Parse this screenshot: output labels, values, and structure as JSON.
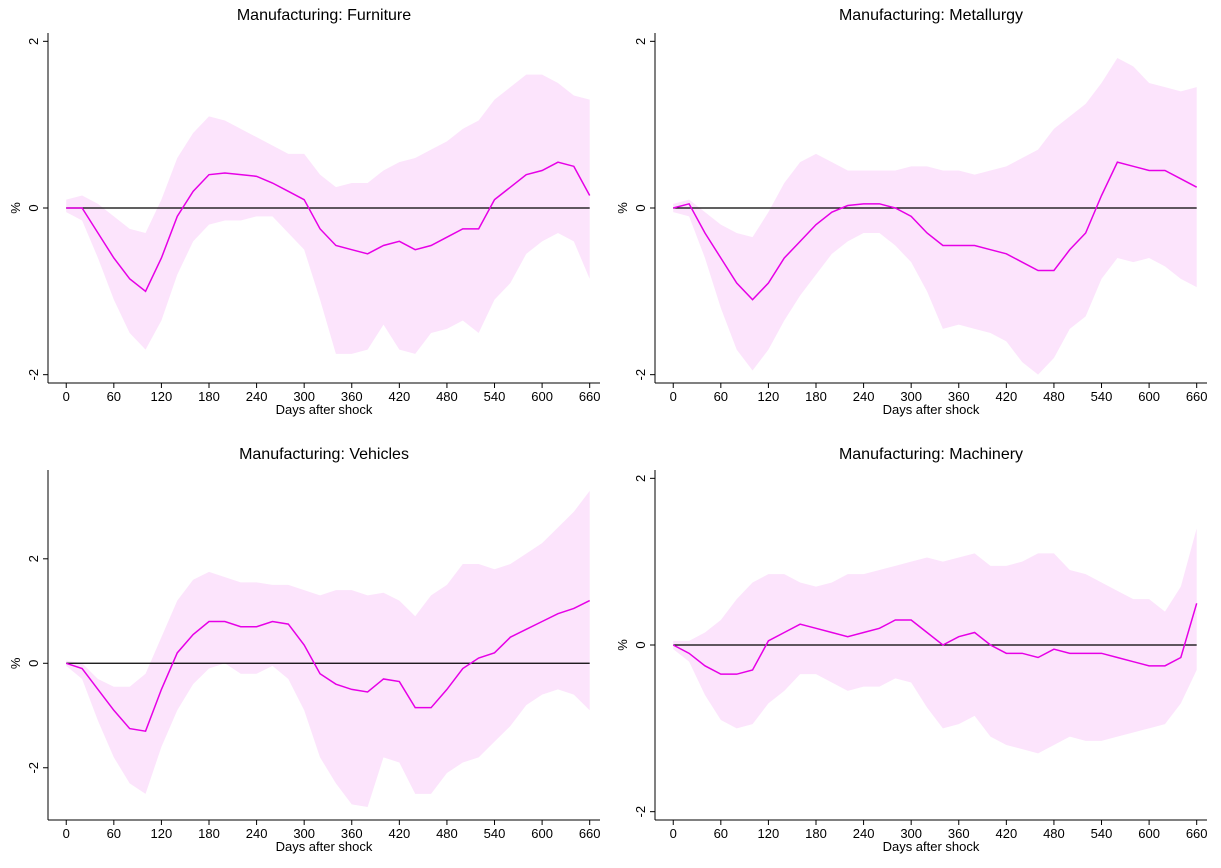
{
  "chart_data": [
    {
      "type": "line",
      "title": "Manufacturing: Furniture",
      "x_label": "Days after shock",
      "y_label": "%",
      "x": [
        0,
        20,
        40,
        60,
        80,
        100,
        120,
        140,
        160,
        180,
        200,
        220,
        240,
        260,
        280,
        300,
        320,
        340,
        360,
        380,
        400,
        420,
        440,
        460,
        480,
        500,
        520,
        540,
        560,
        580,
        600,
        620,
        640,
        660
      ],
      "values": [
        0,
        0,
        -0.3,
        -0.6,
        -0.85,
        -1.0,
        -0.6,
        -0.1,
        0.2,
        0.4,
        0.42,
        0.4,
        0.38,
        0.3,
        0.2,
        0.1,
        -0.25,
        -0.45,
        -0.5,
        -0.55,
        -0.45,
        -0.4,
        -0.5,
        -0.45,
        -0.35,
        -0.25,
        -0.25,
        0.1,
        0.25,
        0.4,
        0.45,
        0.55,
        0.5,
        0.15
      ],
      "upper": [
        0.1,
        0.15,
        0.05,
        -0.1,
        -0.25,
        -0.3,
        0.1,
        0.6,
        0.9,
        1.1,
        1.05,
        0.95,
        0.85,
        0.75,
        0.65,
        0.65,
        0.4,
        0.25,
        0.3,
        0.3,
        0.45,
        0.55,
        0.6,
        0.7,
        0.8,
        0.95,
        1.05,
        1.3,
        1.45,
        1.6,
        1.6,
        1.5,
        1.35,
        1.3
      ],
      "lower": [
        -0.05,
        -0.15,
        -0.6,
        -1.1,
        -1.5,
        -1.7,
        -1.35,
        -0.8,
        -0.4,
        -0.2,
        -0.15,
        -0.15,
        -0.1,
        -0.1,
        -0.3,
        -0.5,
        -1.1,
        -1.75,
        -1.75,
        -1.7,
        -1.4,
        -1.7,
        -1.75,
        -1.5,
        -1.45,
        -1.35,
        -1.5,
        -1.1,
        -0.9,
        -0.55,
        -0.4,
        -0.3,
        -0.4,
        -0.85
      ],
      "color": "#e600e6",
      "band_color": "#fce4fc",
      "hline": 0,
      "xlim": [
        -23,
        673
      ],
      "xticks": [
        0,
        60,
        120,
        180,
        240,
        300,
        360,
        420,
        480,
        540,
        600,
        660
      ],
      "ylim": [
        -2.1,
        2.1
      ],
      "yticks": [
        -2,
        0,
        2
      ]
    },
    {
      "type": "line",
      "title": "Manufacturing: Metallurgy",
      "x_label": "Days after shock",
      "y_label": "%",
      "x": [
        0,
        20,
        40,
        60,
        80,
        100,
        120,
        140,
        160,
        180,
        200,
        220,
        240,
        260,
        280,
        300,
        320,
        340,
        360,
        380,
        400,
        420,
        440,
        460,
        480,
        500,
        520,
        540,
        560,
        580,
        600,
        620,
        640,
        660
      ],
      "values": [
        0,
        0.05,
        -0.3,
        -0.6,
        -0.9,
        -1.1,
        -0.9,
        -0.6,
        -0.4,
        -0.2,
        -0.05,
        0.03,
        0.05,
        0.05,
        0,
        -0.1,
        -0.3,
        -0.45,
        -0.45,
        -0.45,
        -0.5,
        -0.55,
        -0.65,
        -0.75,
        -0.75,
        -0.5,
        -0.3,
        0.15,
        0.55,
        0.5,
        0.45,
        0.45,
        0.35,
        0.25
      ],
      "upper": [
        0.05,
        0.1,
        -0.05,
        -0.2,
        -0.3,
        -0.35,
        -0.05,
        0.3,
        0.55,
        0.65,
        0.55,
        0.45,
        0.45,
        0.45,
        0.45,
        0.5,
        0.5,
        0.45,
        0.45,
        0.4,
        0.45,
        0.5,
        0.6,
        0.7,
        0.95,
        1.1,
        1.25,
        1.5,
        1.8,
        1.7,
        1.5,
        1.45,
        1.4,
        1.45
      ],
      "lower": [
        -0.05,
        -0.1,
        -0.6,
        -1.2,
        -1.7,
        -1.95,
        -1.7,
        -1.35,
        -1.05,
        -0.8,
        -0.55,
        -0.4,
        -0.3,
        -0.3,
        -0.45,
        -0.65,
        -1.0,
        -1.45,
        -1.4,
        -1.45,
        -1.5,
        -1.6,
        -1.85,
        -2.0,
        -1.8,
        -1.45,
        -1.3,
        -0.85,
        -0.6,
        -0.65,
        -0.6,
        -0.7,
        -0.85,
        -0.95
      ],
      "color": "#e600e6",
      "band_color": "#fce4fc",
      "hline": 0,
      "xlim": [
        -23,
        673
      ],
      "xticks": [
        0,
        60,
        120,
        180,
        240,
        300,
        360,
        420,
        480,
        540,
        600,
        660
      ],
      "ylim": [
        -2.1,
        2.1
      ],
      "yticks": [
        -2,
        0,
        2
      ]
    },
    {
      "type": "line",
      "title": "Manufacturing: Vehicles",
      "x_label": "Days after shock",
      "y_label": "%",
      "x": [
        0,
        20,
        40,
        60,
        80,
        100,
        120,
        140,
        160,
        180,
        200,
        220,
        240,
        260,
        280,
        300,
        320,
        340,
        360,
        380,
        400,
        420,
        440,
        460,
        480,
        500,
        520,
        540,
        560,
        580,
        600,
        620,
        640,
        660
      ],
      "values": [
        0,
        -0.1,
        -0.5,
        -0.9,
        -1.25,
        -1.3,
        -0.5,
        0.2,
        0.55,
        0.8,
        0.8,
        0.7,
        0.7,
        0.8,
        0.75,
        0.35,
        -0.2,
        -0.4,
        -0.5,
        -0.55,
        -0.3,
        -0.35,
        -0.85,
        -0.85,
        -0.5,
        -0.1,
        0.1,
        0.2,
        0.5,
        0.65,
        0.8,
        0.95,
        1.05,
        1.2
      ],
      "upper": [
        0.05,
        0,
        -0.3,
        -0.45,
        -0.45,
        -0.2,
        0.5,
        1.2,
        1.6,
        1.75,
        1.65,
        1.55,
        1.55,
        1.5,
        1.5,
        1.4,
        1.3,
        1.4,
        1.4,
        1.3,
        1.35,
        1.2,
        0.9,
        1.3,
        1.5,
        1.9,
        1.9,
        1.8,
        1.9,
        2.1,
        2.3,
        2.6,
        2.9,
        3.3
      ],
      "lower": [
        -0.05,
        -0.3,
        -1.1,
        -1.8,
        -2.3,
        -2.5,
        -1.6,
        -0.9,
        -0.4,
        -0.1,
        0,
        -0.2,
        -0.2,
        -0.05,
        -0.3,
        -0.9,
        -1.8,
        -2.3,
        -2.7,
        -2.75,
        -1.8,
        -1.9,
        -2.5,
        -2.5,
        -2.1,
        -1.9,
        -1.8,
        -1.5,
        -1.2,
        -0.8,
        -0.6,
        -0.5,
        -0.6,
        -0.9
      ],
      "color": "#e600e6",
      "band_color": "#fce4fc",
      "hline": 0,
      "xlim": [
        -23,
        673
      ],
      "xticks": [
        0,
        60,
        120,
        180,
        240,
        300,
        360,
        420,
        480,
        540,
        600,
        660
      ],
      "ylim": [
        -3,
        3.7
      ],
      "yticks": [
        -2,
        0,
        2
      ]
    },
    {
      "type": "line",
      "title": "Manufacturing: Machinery",
      "x_label": "Days after shock",
      "y_label": "%",
      "x": [
        0,
        20,
        40,
        60,
        80,
        100,
        120,
        140,
        160,
        180,
        200,
        220,
        240,
        260,
        280,
        300,
        320,
        340,
        360,
        380,
        400,
        420,
        440,
        460,
        480,
        500,
        520,
        540,
        560,
        580,
        600,
        620,
        640,
        660
      ],
      "values": [
        0,
        -0.1,
        -0.25,
        -0.35,
        -0.35,
        -0.3,
        0.05,
        0.15,
        0.25,
        0.2,
        0.15,
        0.1,
        0.15,
        0.2,
        0.3,
        0.3,
        0.15,
        0,
        0.1,
        0.15,
        0,
        -0.1,
        -0.1,
        -0.15,
        -0.05,
        -0.1,
        -0.1,
        -0.1,
        -0.15,
        -0.2,
        -0.25,
        -0.25,
        -0.15,
        0.5
      ],
      "upper": [
        0.05,
        0.05,
        0.15,
        0.3,
        0.55,
        0.75,
        0.85,
        0.85,
        0.75,
        0.7,
        0.75,
        0.85,
        0.85,
        0.9,
        0.95,
        1.0,
        1.05,
        1.0,
        1.05,
        1.1,
        0.95,
        0.95,
        1.0,
        1.1,
        1.1,
        0.9,
        0.85,
        0.75,
        0.65,
        0.55,
        0.55,
        0.4,
        0.7,
        1.4
      ],
      "lower": [
        -0.05,
        -0.2,
        -0.6,
        -0.9,
        -1.0,
        -0.95,
        -0.7,
        -0.55,
        -0.35,
        -0.35,
        -0.45,
        -0.55,
        -0.5,
        -0.5,
        -0.4,
        -0.45,
        -0.75,
        -1.0,
        -0.95,
        -0.85,
        -1.1,
        -1.2,
        -1.25,
        -1.3,
        -1.2,
        -1.1,
        -1.15,
        -1.15,
        -1.1,
        -1.05,
        -1.0,
        -0.95,
        -0.7,
        -0.3
      ],
      "color": "#e600e6",
      "band_color": "#fce4fc",
      "hline": 0,
      "xlim": [
        -23,
        673
      ],
      "xticks": [
        0,
        60,
        120,
        180,
        240,
        300,
        360,
        420,
        480,
        540,
        600,
        660
      ],
      "ylim": [
        -2.1,
        2.1
      ],
      "yticks": [
        -2,
        0,
        2
      ]
    }
  ]
}
